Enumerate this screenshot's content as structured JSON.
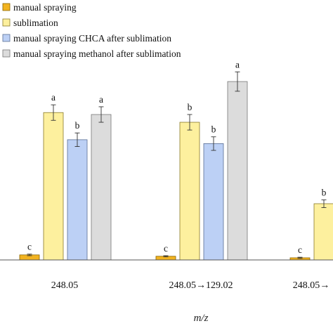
{
  "chart_data": {
    "type": "bar",
    "categories": [
      "248.05",
      "248.05→129.02",
      "248.05→"
    ],
    "xlabel": "m/z",
    "ylabel": "",
    "ylim": [
      0,
      100
    ],
    "grid": false,
    "legend_placement": "top-left",
    "series": [
      {
        "name": "manual spraying",
        "fill": "#f2b320",
        "stroke": "#8a6400",
        "values": [
          2.6,
          1.9,
          1.1
        ],
        "errors": [
          0.4,
          0.3,
          0.3
        ],
        "labels": [
          "c",
          "c",
          "c"
        ]
      },
      {
        "name": "sublimation",
        "fill": "#fdf09e",
        "stroke": "#8a7a2a",
        "values": [
          76,
          71,
          29
        ],
        "errors": [
          4,
          4,
          2
        ],
        "labels": [
          "a",
          "b",
          "b"
        ]
      },
      {
        "name": "manual spraying CHCA after sublimation",
        "fill": "#bcd0f5",
        "stroke": "#5a6f95",
        "values": [
          62,
          60,
          null
        ],
        "errors": [
          3.5,
          3.5,
          null
        ],
        "labels": [
          "b",
          "b",
          null
        ]
      },
      {
        "name": "manual spraying methanol after sublimation",
        "fill": "#dcdcdc",
        "stroke": "#777777",
        "values": [
          75,
          92,
          null
        ],
        "errors": [
          4,
          5,
          null
        ],
        "labels": [
          "a",
          "a",
          null
        ]
      }
    ]
  }
}
